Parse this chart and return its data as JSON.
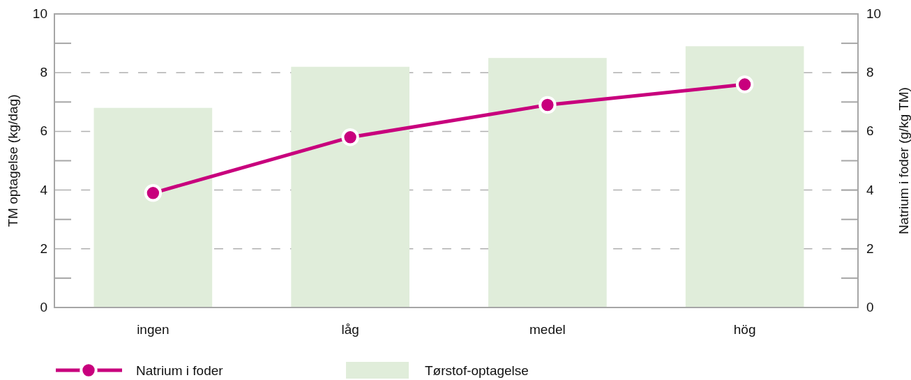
{
  "chart_data": {
    "type": "bar",
    "categories": [
      "ingen",
      "låg",
      "medel",
      "hög"
    ],
    "series": [
      {
        "name": "Natrium i foder",
        "type": "line",
        "axis": "y2",
        "color": "#c8007d",
        "values": [
          3.9,
          5.8,
          6.9,
          7.6
        ]
      },
      {
        "name": "Tørstof-optagelse",
        "type": "bar",
        "color": "#e0edda",
        "values": [
          6.8,
          8.2,
          8.5,
          8.9
        ]
      }
    ],
    "ylabel": "TM optagelse (kg/dag)",
    "y2label": "Natrium i foder (g/kg TM)",
    "ylim": [
      0,
      10
    ],
    "yticks": [
      0,
      {
        "value": 1,
        "label": null
      },
      2,
      {
        "value": 3,
        "label": null
      },
      4,
      {
        "value": 5,
        "label": null
      },
      6,
      {
        "value": 7,
        "label": null
      },
      8,
      {
        "value": 9,
        "label": null
      },
      10
    ],
    "y2lim": [
      0,
      10
    ],
    "y2ticks": [
      0,
      {
        "value": 1,
        "label": null
      },
      2,
      {
        "value": 3,
        "label": null
      },
      4,
      {
        "value": 5,
        "label": null
      },
      6,
      {
        "value": 7,
        "label": null
      },
      8,
      {
        "value": 9,
        "label": null
      },
      10
    ],
    "grid": "y",
    "legend": "bottom",
    "marker": "circle",
    "line_style": "solid"
  }
}
